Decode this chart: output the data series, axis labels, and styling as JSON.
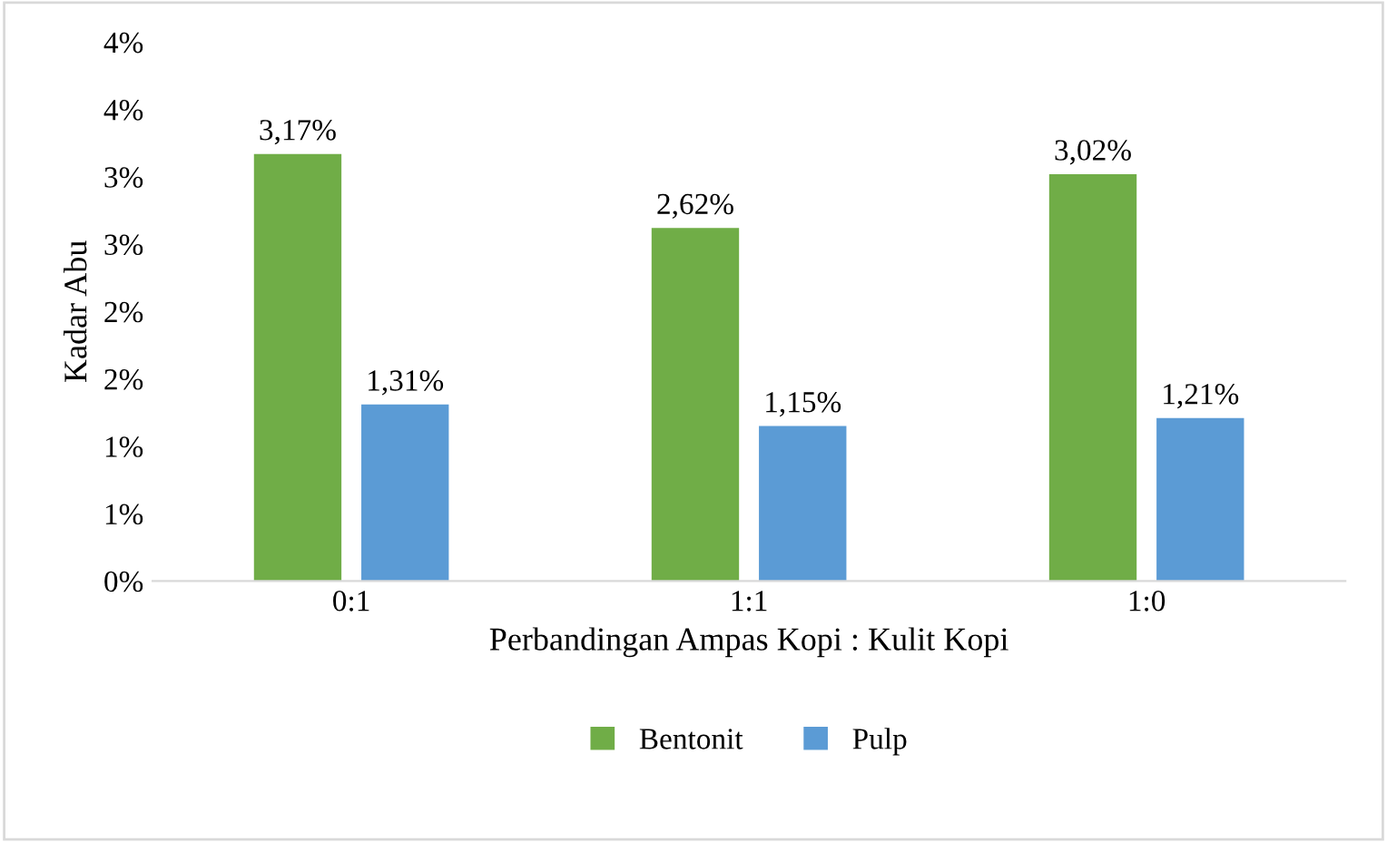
{
  "chart_data": {
    "type": "bar",
    "xlabel": "Perbandingan Ampas Kopi : Kulit Kopi",
    "ylabel": "Kadar Abu",
    "categories": [
      "0:1",
      "1:1",
      "1:0"
    ],
    "series": [
      {
        "name": "Bentonit",
        "color": "#70ad47",
        "values": [
          3.17,
          2.62,
          3.02
        ],
        "value_labels": [
          "3,17%",
          "2,62%",
          "3,02%"
        ]
      },
      {
        "name": "Pulp",
        "color": "#5b9bd5",
        "values": [
          1.31,
          1.15,
          1.21
        ],
        "value_labels": [
          "1,31%",
          "1,15%",
          "1,21%"
        ]
      }
    ],
    "ylim": [
      0,
      4
    ],
    "yticks": [
      {
        "value": 0,
        "label": "0%"
      },
      {
        "value": 0.5,
        "label": "1%"
      },
      {
        "value": 1,
        "label": "1%"
      },
      {
        "value": 1.5,
        "label": "2%"
      },
      {
        "value": 2,
        "label": "2%"
      },
      {
        "value": 2.5,
        "label": "3%"
      },
      {
        "value": 3,
        "label": "3%"
      },
      {
        "value": 3.5,
        "label": "4%"
      },
      {
        "value": 4,
        "label": "4%"
      }
    ],
    "grid": false,
    "legend": "bottom"
  }
}
